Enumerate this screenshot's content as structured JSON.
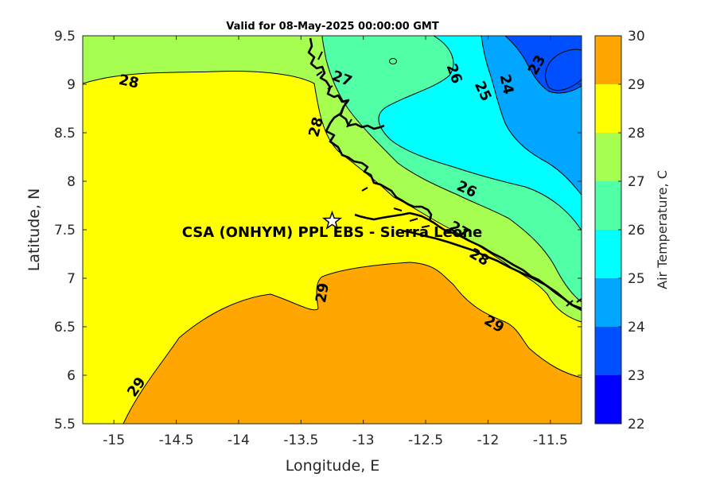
{
  "chart_data": {
    "type": "heatmap",
    "title": "Valid for 08-May-2025 00:00:00 GMT",
    "xlabel": "Longitude, E",
    "ylabel": "Latitude, N",
    "xlim": [
      -15.25,
      -11.25
    ],
    "ylim": [
      5.5,
      9.5
    ],
    "x_ticks": [
      -15,
      -14.5,
      -14,
      -13.5,
      -13,
      -12.5,
      -12,
      -11.5
    ],
    "y_ticks": [
      5.5,
      6,
      6.5,
      7,
      7.5,
      8,
      8.5,
      9,
      9.5
    ],
    "x_tick_labels": [
      "-15",
      "-14.5",
      "-14",
      "-13.5",
      "-13",
      "-12.5",
      "-12",
      "-11.5"
    ],
    "y_tick_labels": [
      "5.5",
      "6",
      "6.5",
      "7",
      "7.5",
      "8",
      "8.5",
      "9",
      "9.5"
    ],
    "colorbar": {
      "label": "Air Temperature, C",
      "range": [
        22,
        30
      ],
      "ticks": [
        22,
        23,
        24,
        25,
        26,
        27,
        28,
        29,
        30
      ],
      "tick_labels": [
        "22",
        "23",
        "24",
        "25",
        "26",
        "27",
        "28",
        "29",
        "30"
      ],
      "levels": [
        {
          "from": 22,
          "to": 23,
          "color": "#0000ff"
        },
        {
          "from": 23,
          "to": 24,
          "color": "#0050ff"
        },
        {
          "from": 24,
          "to": 25,
          "color": "#00a6ff"
        },
        {
          "from": 25,
          "to": 26,
          "color": "#00ffff"
        },
        {
          "from": 26,
          "to": 27,
          "color": "#50ffa6"
        },
        {
          "from": 27,
          "to": 28,
          "color": "#a6ff50"
        },
        {
          "from": 28,
          "to": 29,
          "color": "#ffff00"
        },
        {
          "from": 29,
          "to": 30,
          "color": "#ffa600"
        }
      ]
    },
    "contour_labels": [
      {
        "text": "28",
        "lon": -14.88,
        "lat": 9.03,
        "angle": 12
      },
      {
        "text": "27",
        "lon": -13.17,
        "lat": 9.06,
        "angle": 20
      },
      {
        "text": "26",
        "lon": -12.27,
        "lat": 9.11,
        "angle": 70
      },
      {
        "text": "25",
        "lon": -12.04,
        "lat": 8.93,
        "angle": 65
      },
      {
        "text": "24",
        "lon": -11.85,
        "lat": 9.0,
        "angle": 78
      },
      {
        "text": "23",
        "lon": -11.61,
        "lat": 9.2,
        "angle": -60
      },
      {
        "text": "28",
        "lon": -13.38,
        "lat": 8.56,
        "angle": -75
      },
      {
        "text": "26",
        "lon": -12.17,
        "lat": 7.92,
        "angle": 25
      },
      {
        "text": "27",
        "lon": -12.23,
        "lat": 7.5,
        "angle": 30
      },
      {
        "text": "28",
        "lon": -12.07,
        "lat": 7.22,
        "angle": 30
      },
      {
        "text": "29",
        "lon": -13.33,
        "lat": 6.85,
        "angle": -80
      },
      {
        "text": "29",
        "lon": -11.95,
        "lat": 6.53,
        "angle": 30
      },
      {
        "text": "29",
        "lon": -14.82,
        "lat": 5.88,
        "angle": -55
      }
    ],
    "station": {
      "name": "CSA (ONHYM) PPL EBS  - Sierra Leone",
      "lon": -13.25,
      "lat": 7.59
    }
  }
}
